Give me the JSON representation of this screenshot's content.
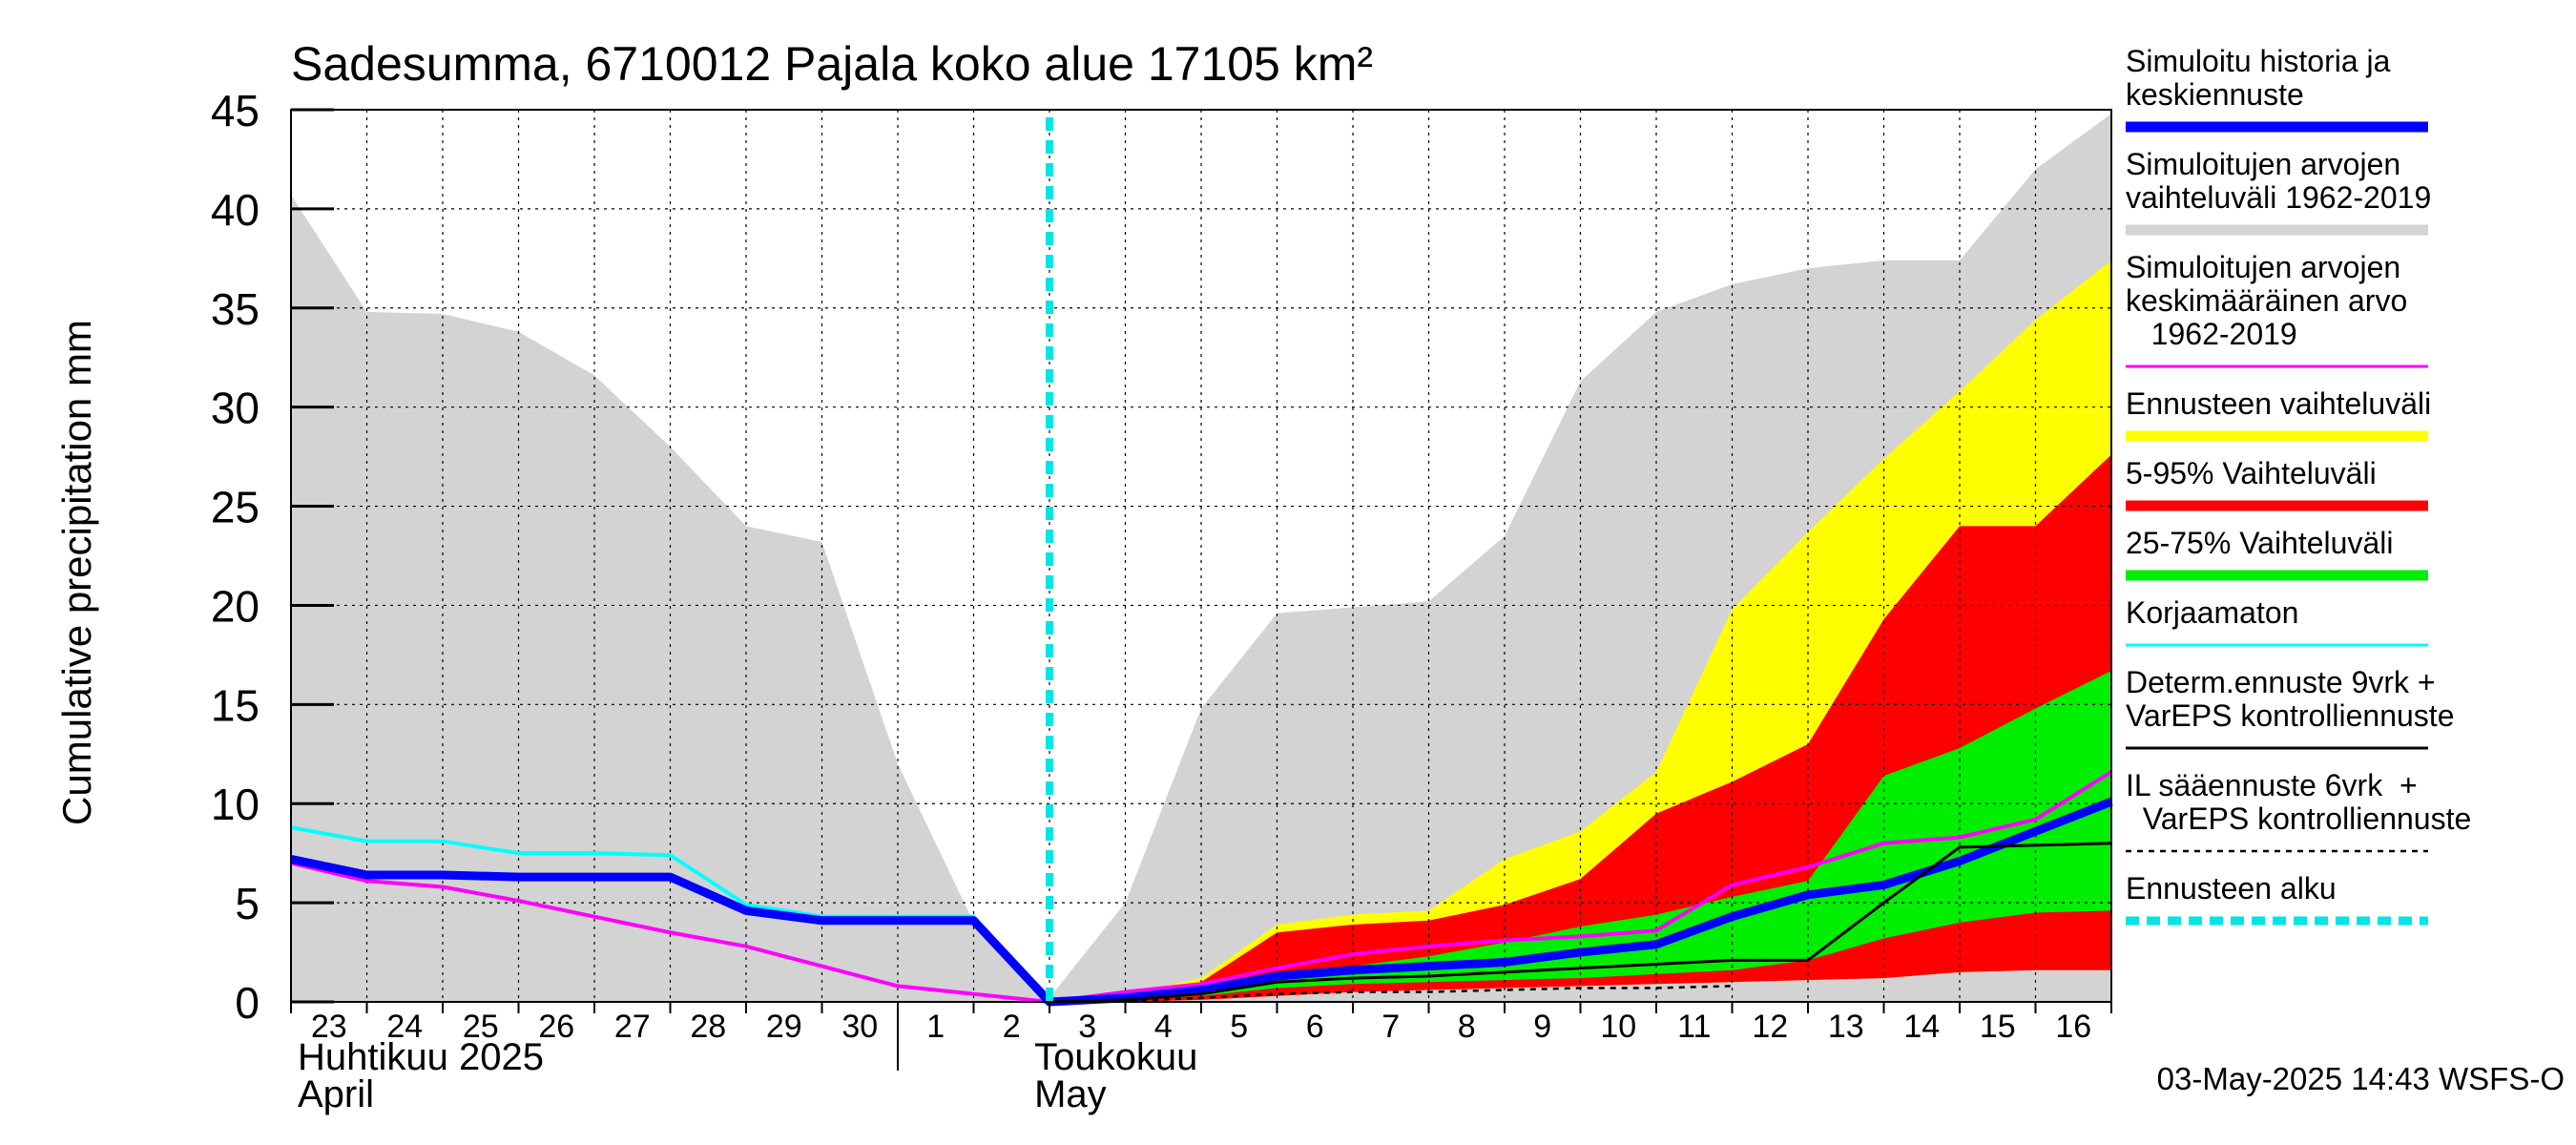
{
  "chart_data": {
    "type": "area",
    "title": "Sadesumma, 6710012 Pajala koko alue 17105 km²",
    "ylabel": "Cumulative precipitation   mm",
    "ylim": [
      0,
      45
    ],
    "yticks": [
      0,
      5,
      10,
      15,
      20,
      25,
      30,
      35,
      40,
      45
    ],
    "grid": true,
    "legend_position": "right",
    "x_day_labels": [
      "23",
      "24",
      "25",
      "26",
      "27",
      "28",
      "29",
      "30",
      "1",
      "2",
      "3",
      "4",
      "5",
      "6",
      "7",
      "8",
      "9",
      "10",
      "11",
      "12",
      "13",
      "14",
      "15",
      "16"
    ],
    "month_labels": [
      {
        "fi": "Huhtikuu  2025",
        "en": "April"
      },
      {
        "fi": "Toukokuu",
        "en": "May"
      }
    ],
    "timestamp": "03-May-2025 14:43 WSFS-O",
    "forecast_start_day": 10.0,
    "days": [
      0,
      1,
      2,
      3,
      4,
      5,
      6,
      7,
      8,
      9,
      10,
      11,
      12,
      13,
      14,
      15,
      16,
      17,
      18,
      19,
      20,
      21,
      22,
      23,
      24
    ],
    "series": [
      {
        "name": "Simuloitujen arvojen vaihteluväli 1962-2019",
        "kind": "band",
        "color": "#d3d3d3",
        "x": [
          0,
          1,
          2,
          3,
          4,
          5,
          6,
          7,
          8,
          9,
          10,
          11,
          12,
          13,
          14,
          15,
          16,
          17,
          18,
          19,
          20,
          21,
          22,
          23,
          24
        ],
        "lower": [
          0,
          0,
          0,
          0,
          0,
          0,
          0,
          0,
          0,
          0,
          0,
          0,
          0,
          0,
          0,
          0,
          0,
          0,
          0,
          0,
          0,
          0,
          0,
          0,
          0
        ],
        "upper": [
          40.7,
          34.8,
          34.7,
          33.8,
          31.6,
          28.0,
          24.0,
          23.2,
          12.0,
          4.0,
          0.2,
          5.0,
          14.8,
          19.6,
          19.9,
          20.2,
          23.5,
          31.3,
          34.8,
          36.2,
          37.0,
          37.4,
          37.4,
          42.0,
          44.8
        ]
      },
      {
        "name": "Ennusteen vaihteluväli",
        "kind": "band",
        "color": "#ffff00",
        "x": [
          10,
          11,
          12,
          13,
          14,
          15,
          16,
          17,
          18,
          19,
          20,
          21,
          22,
          23,
          24
        ],
        "lower": [
          0.0,
          0.0,
          0.1,
          0.3,
          0.5,
          0.6,
          0.7,
          0.8,
          0.9,
          1.0,
          1.1,
          1.2,
          1.5,
          1.6,
          2.8
        ],
        "upper": [
          0.2,
          0.4,
          1.2,
          3.9,
          4.4,
          4.6,
          7.2,
          8.6,
          11.6,
          19.8,
          23.7,
          27.4,
          30.8,
          34.4,
          37.4
        ]
      },
      {
        "name": "5-95% Vaihteluväli",
        "kind": "band",
        "color": "#ff0000",
        "x": [
          10,
          11,
          12,
          13,
          14,
          15,
          16,
          17,
          18,
          19,
          20,
          21,
          22,
          23,
          24
        ],
        "lower": [
          0.0,
          0.0,
          0.1,
          0.3,
          0.5,
          0.6,
          0.7,
          0.8,
          0.9,
          1.0,
          1.1,
          1.2,
          1.5,
          1.6,
          1.6
        ],
        "upper": [
          0.2,
          0.4,
          1.0,
          3.5,
          3.9,
          4.1,
          4.9,
          6.2,
          9.5,
          11.1,
          13.0,
          19.3,
          24.0,
          24.0,
          27.6
        ]
      },
      {
        "name": "25-75% Vaihteluväli",
        "kind": "band",
        "color": "#00ee00",
        "x": [
          10,
          11,
          12,
          13,
          14,
          15,
          16,
          17,
          18,
          19,
          20,
          21,
          22,
          23,
          24
        ],
        "lower": [
          0.0,
          0.1,
          0.3,
          0.7,
          0.9,
          1.0,
          1.1,
          1.2,
          1.4,
          1.6,
          2.1,
          3.2,
          4.0,
          4.5,
          4.6
        ],
        "upper": [
          0.1,
          0.3,
          0.8,
          1.5,
          1.8,
          2.3,
          3.0,
          3.8,
          4.4,
          5.3,
          6.1,
          11.4,
          12.8,
          14.8,
          16.7
        ]
      },
      {
        "name": "Simuloitujen arvojen keskimääräinen arvo 1962-2019",
        "kind": "line",
        "color": "#ff00ff",
        "x": [
          0,
          1,
          2,
          3,
          4,
          5,
          6,
          7,
          8,
          9,
          10,
          11,
          12,
          13,
          14,
          15,
          16,
          17,
          18,
          19,
          20,
          21,
          22,
          23,
          24
        ],
        "y": [
          7.0,
          6.1,
          5.8,
          5.1,
          4.3,
          3.5,
          2.8,
          1.8,
          0.8,
          0.4,
          0.0,
          0.5,
          0.9,
          1.7,
          2.4,
          2.8,
          3.1,
          3.3,
          3.6,
          5.9,
          6.8,
          8.0,
          8.3,
          9.2,
          11.6
        ]
      },
      {
        "name": "Korjaamaton",
        "kind": "line",
        "color": "#00ffff",
        "x": [
          0,
          1,
          2,
          3,
          4,
          5,
          6,
          7,
          8,
          9,
          10
        ],
        "y": [
          8.8,
          8.1,
          8.1,
          7.5,
          7.5,
          7.4,
          4.9,
          4.3,
          4.3,
          4.3,
          0.0
        ]
      },
      {
        "name": "Simuloitu historia ja keskiennuste",
        "kind": "line",
        "color": "#0000ff",
        "x": [
          0,
          1,
          2,
          3,
          4,
          5,
          6,
          7,
          8,
          9,
          10,
          11,
          12,
          13,
          14,
          15,
          16,
          17,
          18,
          19,
          20,
          21,
          22,
          23,
          24
        ],
        "y": [
          7.2,
          6.4,
          6.4,
          6.3,
          6.3,
          6.3,
          4.6,
          4.1,
          4.1,
          4.1,
          0.0,
          0.2,
          0.6,
          1.3,
          1.6,
          1.8,
          2.0,
          2.5,
          2.9,
          4.3,
          5.4,
          5.9,
          7.1,
          8.6,
          10.1
        ]
      },
      {
        "name": "Determ.ennuste 9vrk + VarEPS kontrolliennuste",
        "kind": "line",
        "color": "#000000",
        "x": [
          10,
          11,
          12,
          13,
          14,
          15,
          16,
          17,
          18,
          19,
          20,
          21,
          22,
          23,
          24
        ],
        "y": [
          0.0,
          0.1,
          0.4,
          1.0,
          1.2,
          1.3,
          1.5,
          1.7,
          1.9,
          2.1,
          2.1,
          5.0,
          7.8,
          7.9,
          8.0
        ]
      },
      {
        "name": "IL sääennuste 6vrk  + VarEPS kontrolliennuste",
        "kind": "dashed",
        "color": "#000000",
        "x": [
          10,
          11,
          12,
          13,
          14,
          15,
          16,
          17,
          18,
          19
        ],
        "y": [
          0.0,
          0.05,
          0.2,
          0.4,
          0.5,
          0.5,
          0.6,
          0.7,
          0.7,
          0.8
        ]
      }
    ]
  },
  "legend": [
    {
      "lines": [
        "Simuloitu historia ja",
        "keskiennuste"
      ],
      "color": "#0000ff",
      "style": "solid-thick"
    },
    {
      "lines": [
        "Simuloitujen arvojen",
        "vaihteluväli 1962-2019"
      ],
      "color": "#d3d3d3",
      "style": "solid-thick"
    },
    {
      "lines": [
        "Simuloitujen arvojen",
        "keskimääräinen arvo",
        "   1962-2019"
      ],
      "color": "#ff00ff",
      "style": "solid"
    },
    {
      "lines": [
        "Ennusteen vaihteluväli"
      ],
      "color": "#ffff00",
      "style": "solid-thick"
    },
    {
      "lines": [
        "5-95% Vaihteluväli"
      ],
      "color": "#ff0000",
      "style": "solid-thick"
    },
    {
      "lines": [
        "25-75% Vaihteluväli"
      ],
      "color": "#00ee00",
      "style": "solid-thick"
    },
    {
      "lines": [
        "Korjaamaton"
      ],
      "color": "#00ffff",
      "style": "solid"
    },
    {
      "lines": [
        "Determ.ennuste 9vrk +",
        "VarEPS kontrolliennuste"
      ],
      "color": "#000000",
      "style": "solid"
    },
    {
      "lines": [
        "IL sääennuste 6vrk  +",
        "  VarEPS kontrolliennuste"
      ],
      "color": "#000000",
      "style": "dashed"
    },
    {
      "lines": [
        "Ennusteen alku"
      ],
      "color": "#00e5e5",
      "style": "dashed-thick"
    }
  ]
}
